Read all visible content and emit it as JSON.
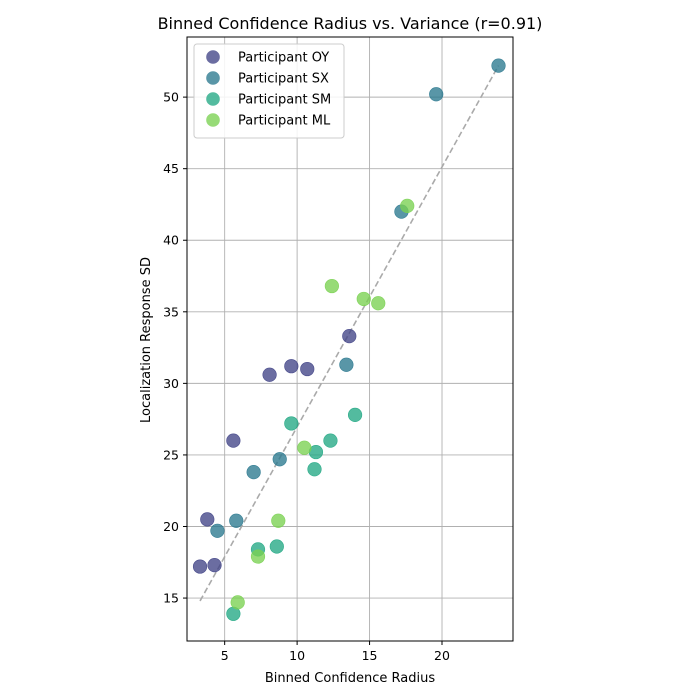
{
  "chart_data": {
    "type": "scatter",
    "title": "Binned Confidence Radius vs. Variance (r=0.91)",
    "xlabel": "Binned Confidence Radius",
    "ylabel": "Localization Response SD",
    "xlim": [
      2.4,
      24.9
    ],
    "ylim": [
      12.0,
      54.2
    ],
    "xticks": [
      5,
      10,
      15,
      20
    ],
    "yticks": [
      15,
      20,
      25,
      30,
      35,
      40,
      45,
      50
    ],
    "grid": true,
    "legend_position": "top-left",
    "series": [
      {
        "name": "Participant OY",
        "color": "#414487",
        "points": [
          [
            3.3,
            17.2
          ],
          [
            3.8,
            20.5
          ],
          [
            4.3,
            17.3
          ],
          [
            5.6,
            26.0
          ],
          [
            8.1,
            30.6
          ],
          [
            9.6,
            31.2
          ],
          [
            10.7,
            31.0
          ],
          [
            13.6,
            33.3
          ]
        ]
      },
      {
        "name": "Participant SX",
        "color": "#2a788e",
        "points": [
          [
            4.5,
            19.7
          ],
          [
            5.8,
            20.4
          ],
          [
            7.0,
            23.8
          ],
          [
            8.8,
            24.7
          ],
          [
            13.4,
            31.3
          ],
          [
            17.2,
            42.0
          ],
          [
            19.6,
            50.2
          ],
          [
            23.9,
            52.2
          ]
        ]
      },
      {
        "name": "Participant SM",
        "color": "#22a884",
        "points": [
          [
            5.6,
            13.9
          ],
          [
            7.3,
            18.4
          ],
          [
            8.6,
            18.6
          ],
          [
            9.6,
            27.2
          ],
          [
            11.2,
            24.0
          ],
          [
            11.3,
            25.2
          ],
          [
            12.3,
            26.0
          ],
          [
            14.0,
            27.8
          ]
        ]
      },
      {
        "name": "Participant ML",
        "color": "#7ad151",
        "points": [
          [
            5.9,
            14.7
          ],
          [
            7.3,
            17.9
          ],
          [
            8.7,
            20.4
          ],
          [
            10.5,
            25.5
          ],
          [
            12.4,
            36.8
          ],
          [
            14.6,
            35.9
          ],
          [
            15.6,
            35.6
          ],
          [
            17.6,
            42.4
          ]
        ]
      }
    ],
    "fit_line": {
      "color": "#aaaaaa",
      "x": [
        3.3,
        23.9
      ],
      "y": [
        14.8,
        52.2
      ]
    }
  }
}
